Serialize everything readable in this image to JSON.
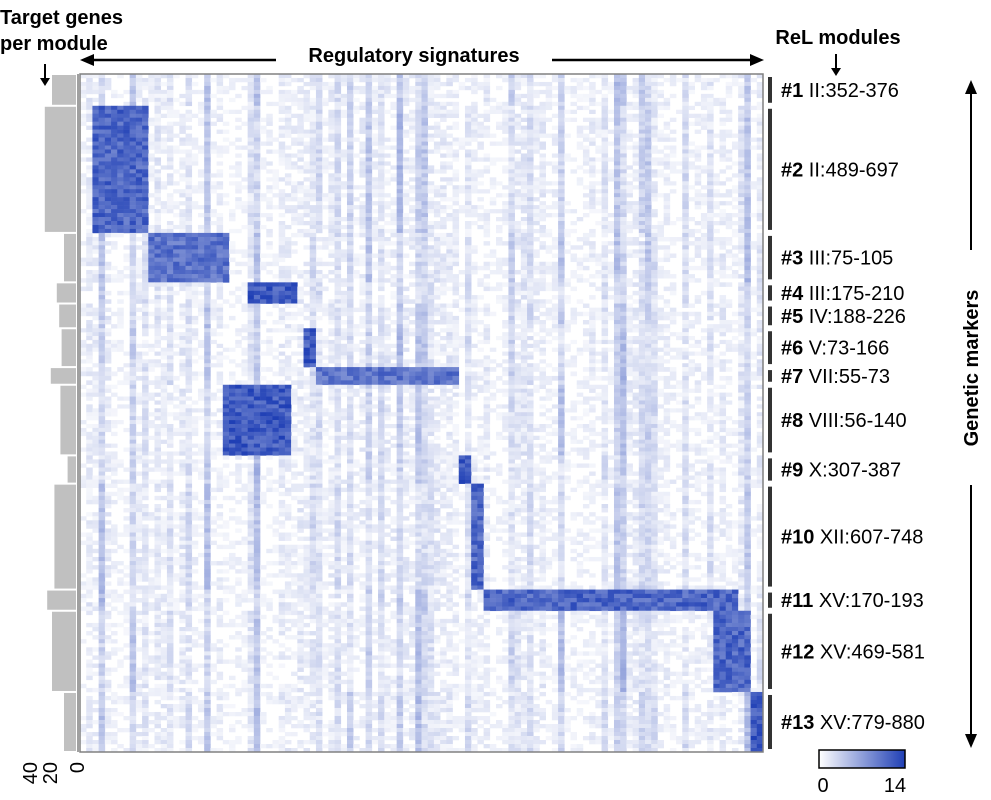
{
  "chart_data": {
    "type": "heatmap",
    "title": "Regulatory signatures",
    "left_title_line1": "Target genes",
    "left_title_line2": "per module",
    "right_title": "ReL modules",
    "right_axis_label": "Genetic markers",
    "bar_axis_ticks": [
      "40",
      "20",
      "0"
    ],
    "bar_axis_range": [
      0,
      40
    ],
    "colorbar": {
      "min_label": "0",
      "max_label": "14",
      "range": [
        0,
        14
      ],
      "low_color": "#ffffff",
      "high_color": "#1f3fb5"
    },
    "accent_color": "#2946b8",
    "bar_color": "#c0c0c0",
    "modules": [
      {
        "num": "#1",
        "locus": "II:352-376",
        "size": 9,
        "target_genes": 20
      },
      {
        "num": "#2",
        "locus": "II:489-697",
        "size": 36,
        "target_genes": 26
      },
      {
        "num": "#3",
        "locus": "III:75-105",
        "size": 14,
        "target_genes": 10
      },
      {
        "num": "#4",
        "locus": "III:175-210",
        "size": 6,
        "target_genes": 16
      },
      {
        "num": "#5",
        "locus": "IV:188-226",
        "size": 7,
        "target_genes": 14
      },
      {
        "num": "#6",
        "locus": "V:73-166",
        "size": 11,
        "target_genes": 12
      },
      {
        "num": "#7",
        "locus": "VII:55-73",
        "size": 5,
        "target_genes": 21
      },
      {
        "num": "#8",
        "locus": "VIII:56-140",
        "size": 20,
        "target_genes": 13
      },
      {
        "num": "#9",
        "locus": "X:307-387",
        "size": 8,
        "target_genes": 7
      },
      {
        "num": "#10",
        "locus": "XII:607-748",
        "size": 30,
        "target_genes": 18
      },
      {
        "num": "#11",
        "locus": "XV:170-193",
        "size": 6,
        "target_genes": 24
      },
      {
        "num": "#12",
        "locus": "XV:469-581",
        "size": 23,
        "target_genes": 20
      },
      {
        "num": "#13",
        "locus": "XV:779-880",
        "size": 17,
        "target_genes": 10
      }
    ],
    "signature_blocks": [
      {
        "module": "#2",
        "from": 0.02,
        "to": 0.1,
        "value": 12
      },
      {
        "module": "#3",
        "from": 0.1,
        "to": 0.22,
        "value": 11
      },
      {
        "module": "#4",
        "from": 0.25,
        "to": 0.32,
        "value": 13
      },
      {
        "module": "#6",
        "from": 0.33,
        "to": 0.345,
        "value": 13
      },
      {
        "module": "#7",
        "from": 0.345,
        "to": 0.55,
        "value": 11
      },
      {
        "module": "#8",
        "from": 0.21,
        "to": 0.31,
        "value": 13
      },
      {
        "module": "#9",
        "from": 0.555,
        "to": 0.57,
        "value": 13
      },
      {
        "module": "#10",
        "from": 0.57,
        "to": 0.59,
        "value": 12
      },
      {
        "module": "#11",
        "from": 0.59,
        "to": 0.96,
        "value": 12
      },
      {
        "module": "#12",
        "from": 0.93,
        "to": 0.98,
        "value": 12
      },
      {
        "module": "#13",
        "from": 0.98,
        "to": 1.0,
        "value": 13
      }
    ]
  }
}
